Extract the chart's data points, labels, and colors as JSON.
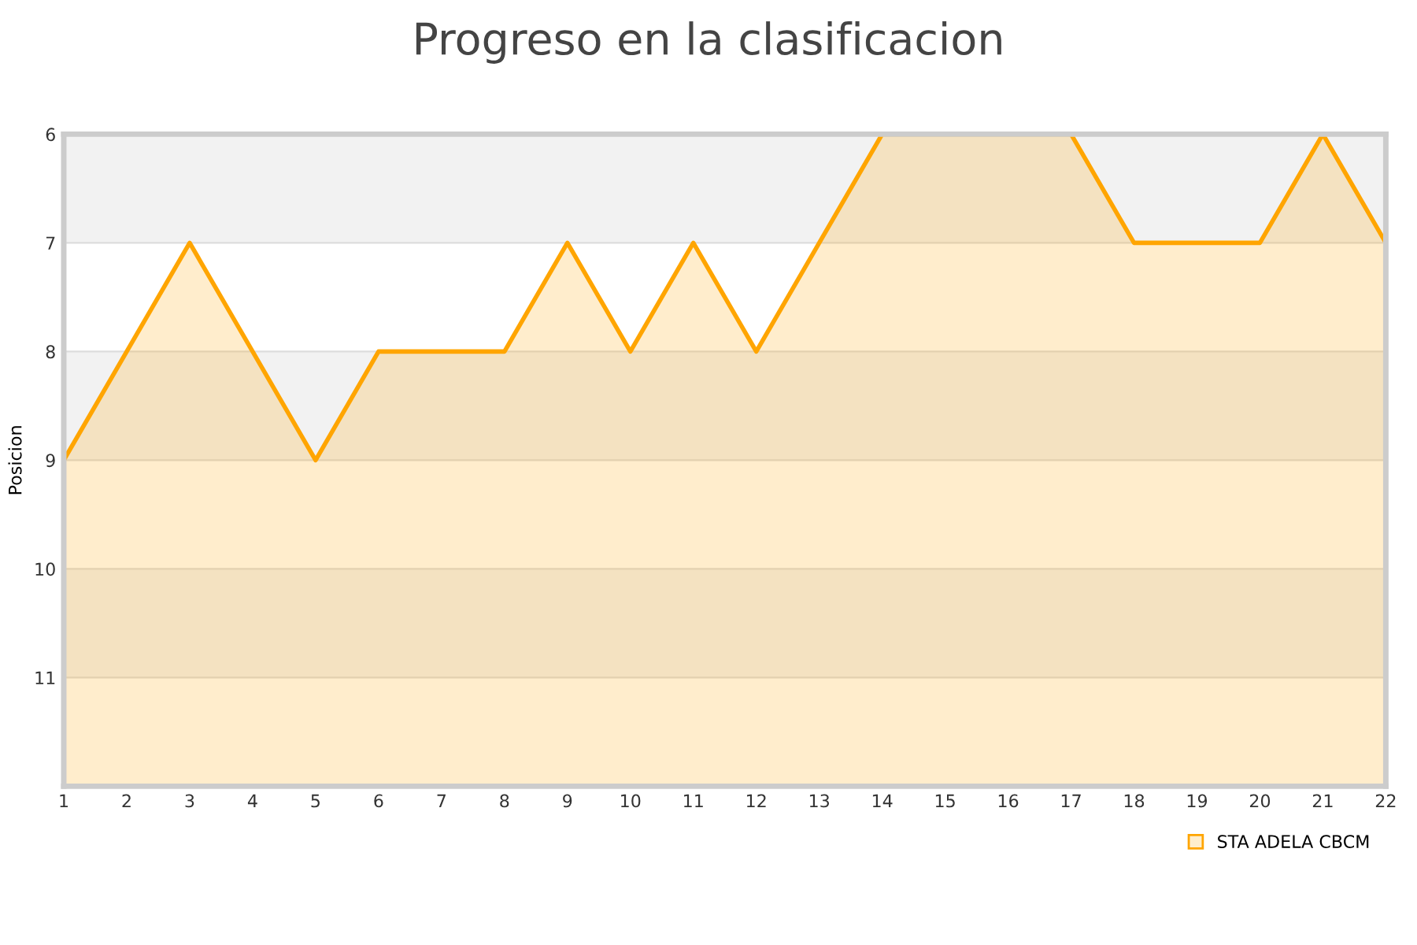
{
  "chart_data": {
    "type": "area",
    "title": "Progreso en la clasificacion",
    "ylabel": "Posicion",
    "x": [
      1,
      2,
      3,
      4,
      5,
      6,
      7,
      8,
      9,
      10,
      11,
      12,
      13,
      14,
      15,
      16,
      17,
      18,
      19,
      20,
      21,
      22
    ],
    "series": [
      {
        "name": "STA ADELA CBCM",
        "color": "#ffa500",
        "values": [
          9,
          8,
          7,
          8,
          9,
          8,
          8,
          8,
          7,
          8,
          7,
          8,
          7,
          6,
          6,
          6,
          6,
          7,
          7,
          7,
          6,
          7
        ]
      }
    ],
    "xlim": [
      1,
      22
    ],
    "xticks": [
      1,
      2,
      3,
      4,
      5,
      6,
      7,
      8,
      9,
      10,
      11,
      12,
      13,
      14,
      15,
      16,
      17,
      18,
      19,
      20,
      21,
      22
    ],
    "ylim": [
      12,
      6
    ],
    "yticks": [
      6,
      7,
      8,
      9,
      10,
      11
    ],
    "bands": [
      {
        "axis": "y",
        "from": 6,
        "to": 7,
        "color": "#f2f2f2"
      },
      {
        "axis": "y",
        "from": 8,
        "to": 9,
        "color": "#f2f2f2"
      },
      {
        "axis": "y",
        "from": 10,
        "to": 11,
        "color": "#f2f2f2"
      }
    ],
    "grid": "y",
    "legend": "bottom right"
  }
}
